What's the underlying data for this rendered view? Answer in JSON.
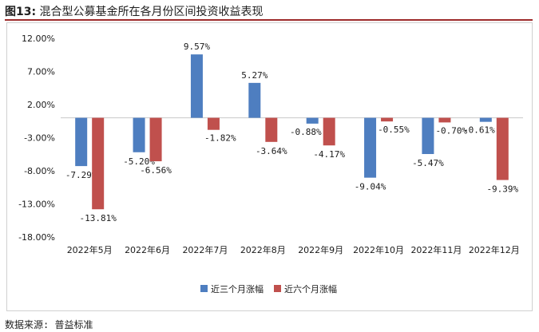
{
  "header": {
    "figure_label": "图13:",
    "title_text": "混合型公募基金所在各月份区间投资收益表现"
  },
  "footer": {
    "source": "数据来源: 普益标准"
  },
  "chart_data": {
    "type": "bar",
    "title": "混合型公募基金所在各月份区间投资收益表现",
    "categories": [
      "2022年5月",
      "2022年6月",
      "2022年7月",
      "2022年8月",
      "2022年9月",
      "2022年10月",
      "2022年11月",
      "2022年12月"
    ],
    "series": [
      {
        "name": "近三个月涨幅",
        "color": "#4e7ec0",
        "values": [
          -7.29,
          -5.2,
          9.57,
          5.27,
          -0.88,
          -9.04,
          -5.47,
          -0.61
        ],
        "labels": [
          "-7.29%",
          "-5.20%",
          "9.57%",
          "5.27%",
          "-0.88%",
          "-9.04%",
          "-5.47%",
          "-0.61%"
        ]
      },
      {
        "name": "近六个月涨幅",
        "color": "#c0504d",
        "values": [
          -13.81,
          -6.56,
          -1.82,
          -3.64,
          -4.17,
          -0.55,
          -0.7,
          -9.39
        ],
        "labels": [
          "-13.81%",
          "-6.56%",
          "-1.82%",
          "-3.64%",
          "-4.17%",
          "-0.55%",
          "-0.70%",
          "-9.39%"
        ]
      }
    ],
    "yticks": [
      12,
      7,
      2,
      -3,
      -8,
      -13,
      -18
    ],
    "ytick_labels": [
      "12.00%",
      "7.00%",
      "2.00%",
      "-3.00%",
      "-8.00%",
      "-13.00%",
      "-18.00%"
    ],
    "ylim": [
      -18,
      12
    ],
    "xlabel": "",
    "ylabel": "",
    "grid": false,
    "legend_position": "bottom"
  }
}
